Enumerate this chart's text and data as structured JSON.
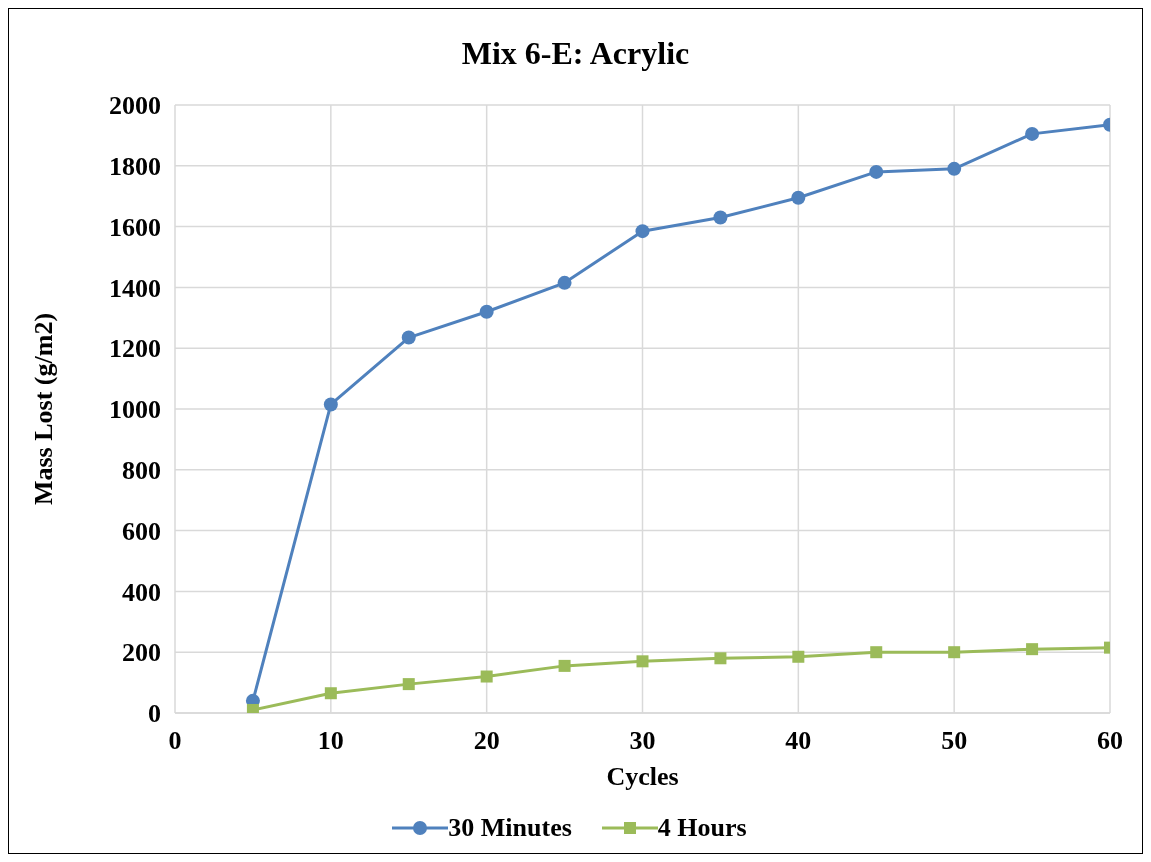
{
  "chart_data": {
    "type": "line",
    "title": "Mix 6-E: Acrylic",
    "xlabel": "Cycles",
    "ylabel": "Mass Lost (g/m2)",
    "x": [
      5,
      10,
      15,
      20,
      25,
      30,
      35,
      40,
      45,
      50,
      55,
      60
    ],
    "series": [
      {
        "name": "30 Minutes",
        "color": "#4f81bd",
        "marker": "circle",
        "values": [
          40,
          1015,
          1235,
          1320,
          1415,
          1585,
          1630,
          1695,
          1780,
          1790,
          1905,
          1935
        ]
      },
      {
        "name": "4 Hours",
        "color": "#9bbb59",
        "marker": "square",
        "values": [
          10,
          65,
          95,
          120,
          155,
          170,
          180,
          185,
          200,
          200,
          210,
          215
        ]
      }
    ],
    "xlim": [
      0,
      60
    ],
    "xticks": [
      0,
      10,
      20,
      30,
      40,
      50,
      60
    ],
    "ylim": [
      0,
      2000
    ],
    "yticks": [
      0,
      200,
      400,
      600,
      800,
      1000,
      1200,
      1400,
      1600,
      1800,
      2000
    ],
    "grid": true,
    "legend": "bottom",
    "line_style": "solid"
  }
}
